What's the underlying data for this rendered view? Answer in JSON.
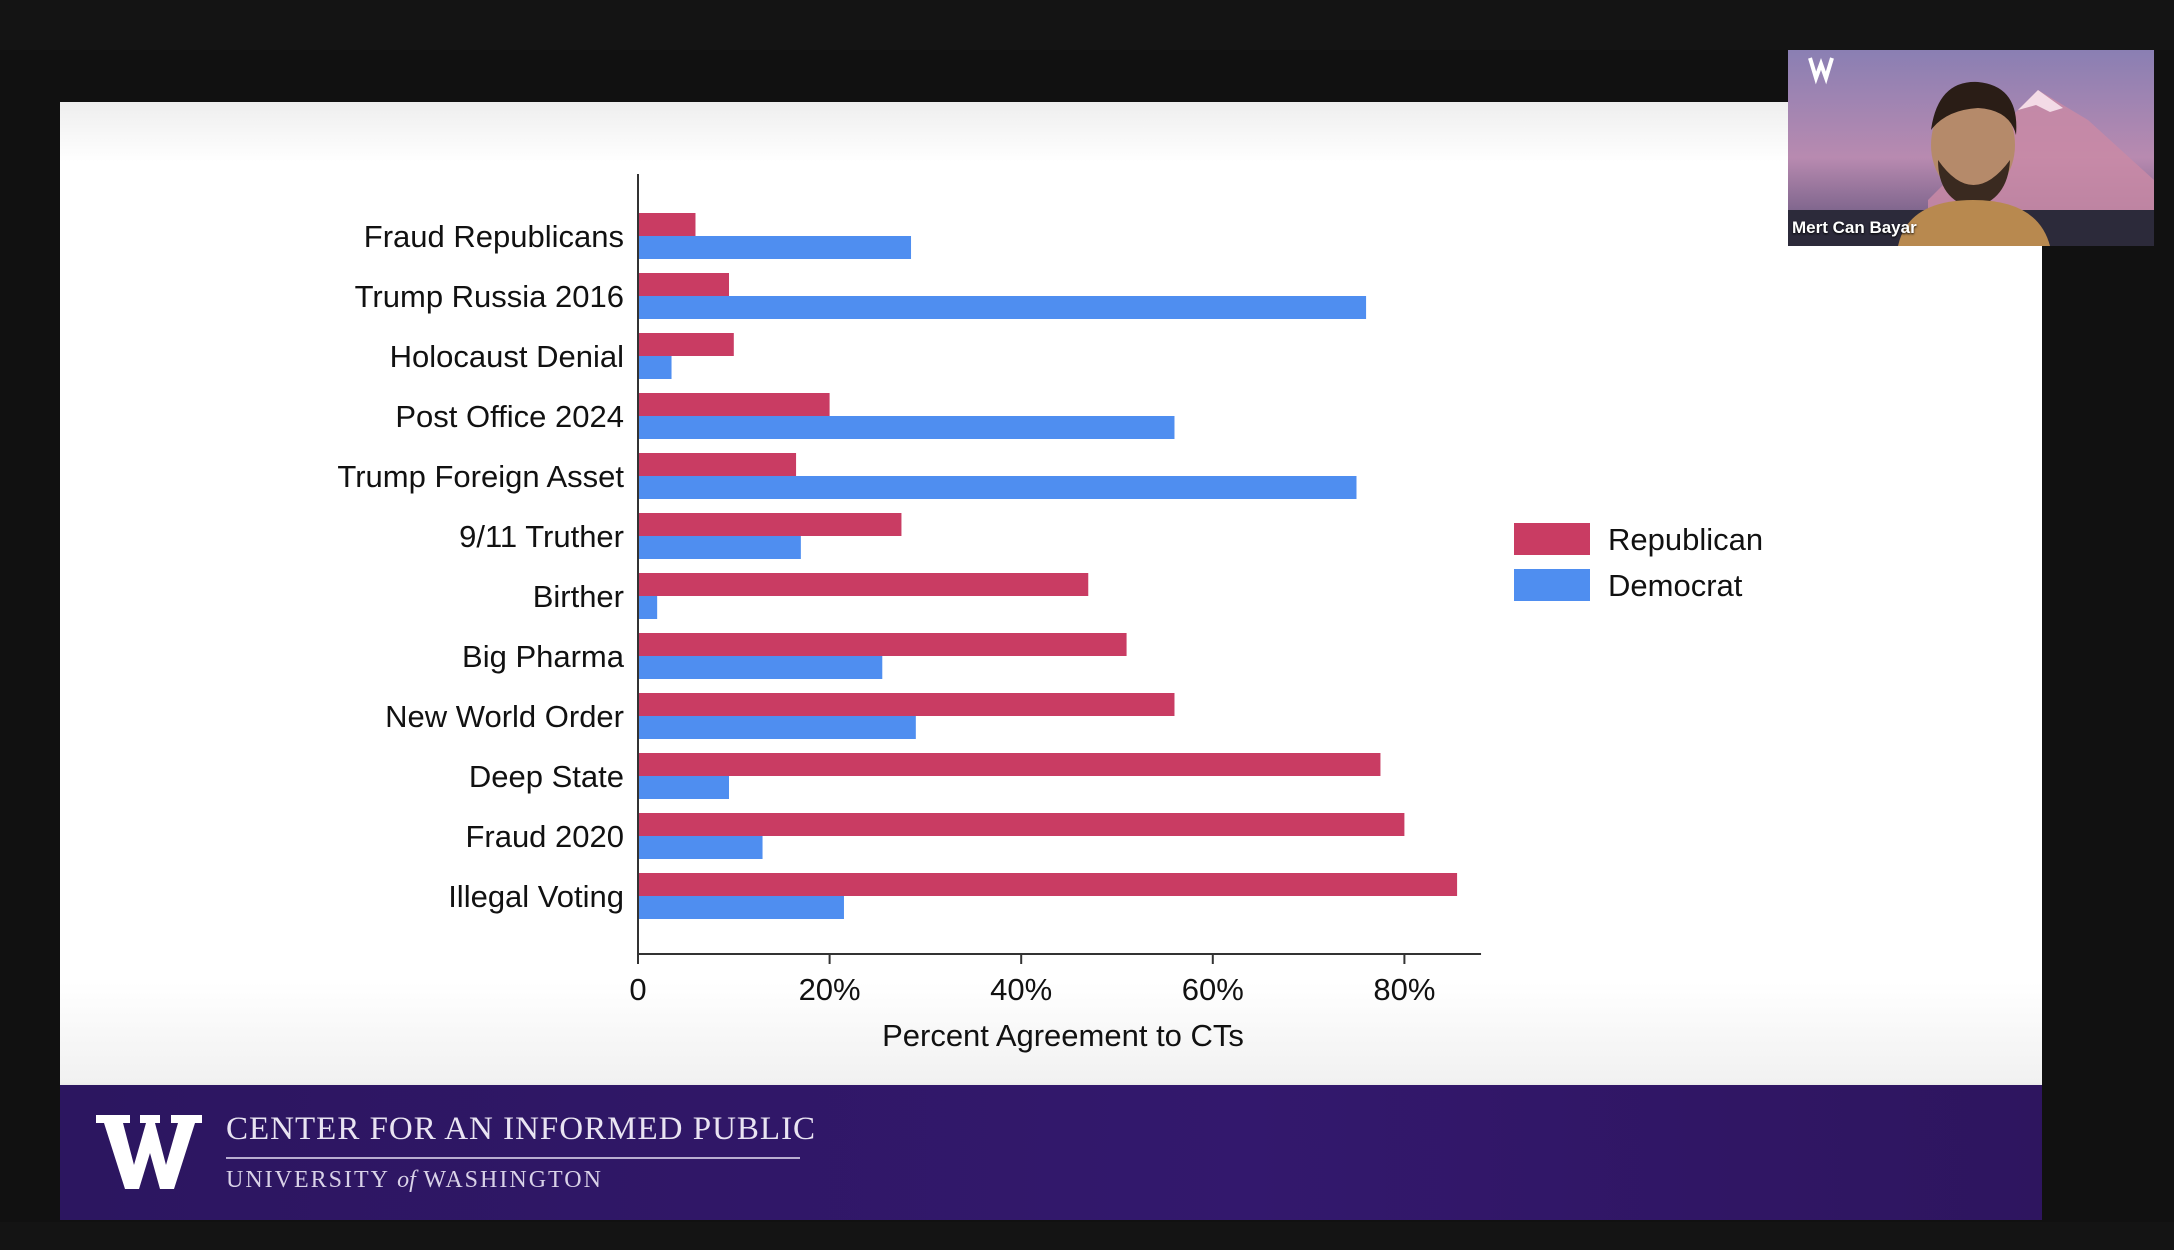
{
  "chart_data": {
    "type": "bar",
    "orientation": "horizontal",
    "categories": [
      "Fraud Republicans",
      "Trump Russia 2016",
      "Holocaust Denial",
      "Post Office 2024",
      "Trump Foreign Asset",
      "9/11 Truther",
      "Birther",
      "Big Pharma",
      "New World Order",
      "Deep State",
      "Fraud 2020",
      "Illegal Voting"
    ],
    "series": [
      {
        "name": "Republican",
        "color": "#c93c63",
        "values": [
          6,
          9.5,
          10,
          20,
          16.5,
          27.5,
          47,
          51,
          56,
          77.5,
          80,
          85.5
        ]
      },
      {
        "name": "Democrat",
        "color": "#4f8ef0",
        "values": [
          28.5,
          76,
          3.5,
          56,
          75,
          17,
          2,
          25.5,
          29,
          9.5,
          13,
          21.5
        ]
      }
    ],
    "xlabel": "Percent Agreement to CTs",
    "xlim": [
      0,
      88
    ],
    "xticks": [
      0,
      20,
      40,
      60,
      80
    ],
    "xtick_labels": [
      "0",
      "20%",
      "40%",
      "60%",
      "80%"
    ],
    "grid": false,
    "legend_position": "right"
  },
  "footer": {
    "org_name": "CENTER FOR AN INFORMED PUBLIC",
    "university_pre": "UNIVERSITY",
    "university_of": "of",
    "university_post": "WASHINGTON"
  },
  "video": {
    "participant_name": "Mert Can Bayar"
  }
}
